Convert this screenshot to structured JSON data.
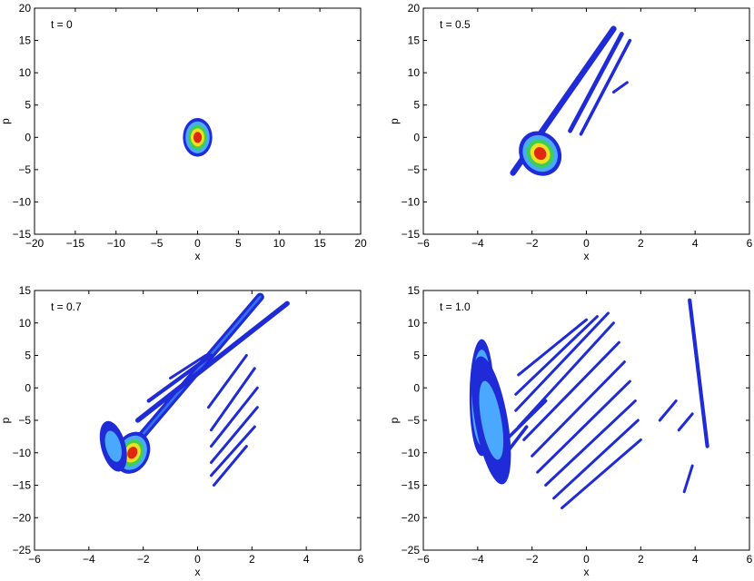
{
  "chart_data": [
    {
      "type": "contour",
      "title": "t = 0",
      "xlabel": "x",
      "ylabel": "p",
      "xlim": [
        -20,
        20
      ],
      "ylim": [
        -15,
        20
      ],
      "xticks": [
        -20,
        -15,
        -10,
        -5,
        0,
        5,
        10,
        15,
        20
      ],
      "yticks": [
        -15,
        -10,
        -5,
        0,
        5,
        10,
        15,
        20
      ],
      "xtick_labels": [
        "−20",
        "−15",
        "−10",
        "−5",
        "0",
        "5",
        "10",
        "15",
        "20"
      ],
      "ytick_labels": [
        "−15",
        "−10",
        "−5",
        "0",
        "5",
        "10",
        "15",
        "20"
      ],
      "blobs": [
        {
          "cx": 0,
          "cy": 0,
          "rx": 1.8,
          "ry": 3.0,
          "angle": 0,
          "levels": 5
        }
      ],
      "stripes": []
    },
    {
      "type": "contour",
      "title": "t = 0.5",
      "xlabel": "x",
      "ylabel": "p",
      "xlim": [
        -6,
        6
      ],
      "ylim": [
        -15,
        20
      ],
      "xticks": [
        -6,
        -4,
        -2,
        0,
        2,
        4,
        6
      ],
      "yticks": [
        -15,
        -10,
        -5,
        0,
        5,
        10,
        15,
        20
      ],
      "xtick_labels": [
        "−6",
        "−4",
        "−2",
        "0",
        "2",
        "4",
        "6"
      ],
      "ytick_labels": [
        "−15",
        "−10",
        "−5",
        "0",
        "5",
        "10",
        "15",
        "20"
      ],
      "blobs": [
        {
          "cx": -1.7,
          "cy": -2.5,
          "rx": 0.75,
          "ry": 3.6,
          "angle": 35,
          "levels": 5
        }
      ],
      "stripes": [
        {
          "x1": -2.7,
          "y1": -5.5,
          "x2": 1.0,
          "y2": 16.8,
          "w": 0.22,
          "level": 0
        },
        {
          "x1": -0.6,
          "y1": 1.0,
          "x2": 1.3,
          "y2": 16.0,
          "w": 0.16,
          "level": 0
        },
        {
          "x1": -0.2,
          "y1": 0.5,
          "x2": 1.6,
          "y2": 15.0,
          "w": 0.12,
          "level": 0
        },
        {
          "x1": 1.0,
          "y1": 7.0,
          "x2": 1.5,
          "y2": 8.5,
          "w": 0.08,
          "level": 0
        }
      ]
    },
    {
      "type": "contour",
      "title": "t = 0.7",
      "xlabel": "x",
      "ylabel": "p",
      "xlim": [
        -6,
        6
      ],
      "ylim": [
        -25,
        15
      ],
      "xticks": [
        -6,
        -4,
        -2,
        0,
        2,
        4,
        6
      ],
      "yticks": [
        -25,
        -20,
        -15,
        -10,
        -5,
        0,
        5,
        10,
        15
      ],
      "xtick_labels": [
        "−6",
        "−4",
        "−2",
        "0",
        "2",
        "4",
        "6"
      ],
      "ytick_labels": [
        "−25",
        "−20",
        "−15",
        "−10",
        "−5",
        "0",
        "5",
        "10",
        "15"
      ],
      "blobs": [
        {
          "cx": -2.4,
          "cy": -10.0,
          "rx": 0.8,
          "ry": 2.6,
          "angle": 65,
          "levels": 5
        },
        {
          "cx": -3.1,
          "cy": -9.0,
          "rx": 0.45,
          "ry": 4.0,
          "angle": 15,
          "levels": 2
        }
      ],
      "stripes": [
        {
          "x1": -3.0,
          "y1": -12.0,
          "x2": 2.3,
          "y2": 14.0,
          "w": 0.3,
          "level": 0
        },
        {
          "x1": -2.2,
          "y1": -5.0,
          "x2": 3.3,
          "y2": 13.0,
          "w": 0.18,
          "level": 0
        },
        {
          "x1": -1.8,
          "y1": -2.0,
          "x2": 0.5,
          "y2": 5.0,
          "w": 0.14,
          "level": 0
        },
        {
          "x1": -1.0,
          "y1": 1.5,
          "x2": 0.3,
          "y2": 5.0,
          "w": 0.1,
          "level": 0
        },
        {
          "x1": 0.4,
          "y1": -3.0,
          "x2": 1.8,
          "y2": 5.0,
          "w": 0.1,
          "level": 0
        },
        {
          "x1": 0.5,
          "y1": -6.5,
          "x2": 2.1,
          "y2": 3.0,
          "w": 0.1,
          "level": 0
        },
        {
          "x1": 0.5,
          "y1": -9.0,
          "x2": 2.2,
          "y2": 0.0,
          "w": 0.09,
          "level": 0
        },
        {
          "x1": 0.5,
          "y1": -11.5,
          "x2": 2.2,
          "y2": -3.0,
          "w": 0.09,
          "level": 0
        },
        {
          "x1": 0.5,
          "y1": -13.5,
          "x2": 2.1,
          "y2": -6.0,
          "w": 0.08,
          "level": 0
        },
        {
          "x1": 0.6,
          "y1": -15.0,
          "x2": 1.8,
          "y2": -9.0,
          "w": 0.07,
          "level": 0
        }
      ]
    },
    {
      "type": "contour",
      "title": "t = 1.0",
      "xlabel": "x",
      "ylabel": "p",
      "xlim": [
        -6,
        6
      ],
      "ylim": [
        -25,
        15
      ],
      "xticks": [
        -6,
        -4,
        -2,
        0,
        2,
        4,
        6
      ],
      "yticks": [
        -25,
        -20,
        -15,
        -10,
        -5,
        0,
        5,
        10,
        15
      ],
      "xtick_labels": [
        "−6",
        "−4",
        "−2",
        "0",
        "2",
        "4",
        "6"
      ],
      "ytick_labels": [
        "−25",
        "−20",
        "−15",
        "−10",
        "−5",
        "0",
        "5",
        "10",
        "15"
      ],
      "blobs": [
        {
          "cx": -3.85,
          "cy": -1.5,
          "rx": 0.45,
          "ry": 9.0,
          "angle": 0,
          "levels": 5
        },
        {
          "cx": -3.5,
          "cy": -5.0,
          "rx": 0.6,
          "ry": 10.0,
          "angle": 10,
          "levels": 2
        }
      ],
      "stripes": [
        {
          "x1": -2.5,
          "y1": 2.0,
          "x2": 0.0,
          "y2": 10.5,
          "w": 0.1,
          "level": 0
        },
        {
          "x1": -2.6,
          "y1": -1.0,
          "x2": 0.4,
          "y2": 11.0,
          "w": 0.1,
          "level": 0
        },
        {
          "x1": -2.6,
          "y1": -3.5,
          "x2": 0.8,
          "y2": 11.5,
          "w": 0.1,
          "level": 0
        },
        {
          "x1": -2.5,
          "y1": -6.0,
          "x2": 1.0,
          "y2": 10.0,
          "w": 0.1,
          "level": 0
        },
        {
          "x1": -2.3,
          "y1": -8.0,
          "x2": 1.2,
          "y2": 7.0,
          "w": 0.1,
          "level": 0
        },
        {
          "x1": -2.0,
          "y1": -10.5,
          "x2": 1.4,
          "y2": 4.0,
          "w": 0.1,
          "level": 0
        },
        {
          "x1": -1.8,
          "y1": -13.0,
          "x2": 1.6,
          "y2": 1.0,
          "w": 0.1,
          "level": 0
        },
        {
          "x1": -1.5,
          "y1": -15.0,
          "x2": 1.8,
          "y2": -2.0,
          "w": 0.1,
          "level": 0
        },
        {
          "x1": -1.2,
          "y1": -17.0,
          "x2": 1.9,
          "y2": -5.0,
          "w": 0.1,
          "level": 0
        },
        {
          "x1": -0.9,
          "y1": -18.5,
          "x2": 2.0,
          "y2": -8.0,
          "w": 0.09,
          "level": 0
        },
        {
          "x1": -3.2,
          "y1": -9.0,
          "x2": -1.5,
          "y2": -2.0,
          "w": 0.12,
          "level": 0
        },
        {
          "x1": -3.3,
          "y1": -12.0,
          "x2": -2.2,
          "y2": -6.0,
          "w": 0.12,
          "level": 0
        },
        {
          "x1": 4.45,
          "y1": -9.0,
          "x2": 3.8,
          "y2": 13.5,
          "w": 0.14,
          "level": 0
        },
        {
          "x1": 3.9,
          "y1": -12.0,
          "x2": 3.6,
          "y2": -16.0,
          "w": 0.1,
          "level": 0
        },
        {
          "x1": 2.7,
          "y1": -5.0,
          "x2": 3.3,
          "y2": -2.0,
          "w": 0.06,
          "level": 0
        },
        {
          "x1": 3.4,
          "y1": -6.5,
          "x2": 3.9,
          "y2": -4.0,
          "w": 0.06,
          "level": 0
        }
      ]
    }
  ],
  "colors": {
    "levels": [
      "#1e2bd6",
      "#4aa8ff",
      "#3ecc5a",
      "#f0e020",
      "#e02810",
      "#7a0e0e"
    ]
  }
}
